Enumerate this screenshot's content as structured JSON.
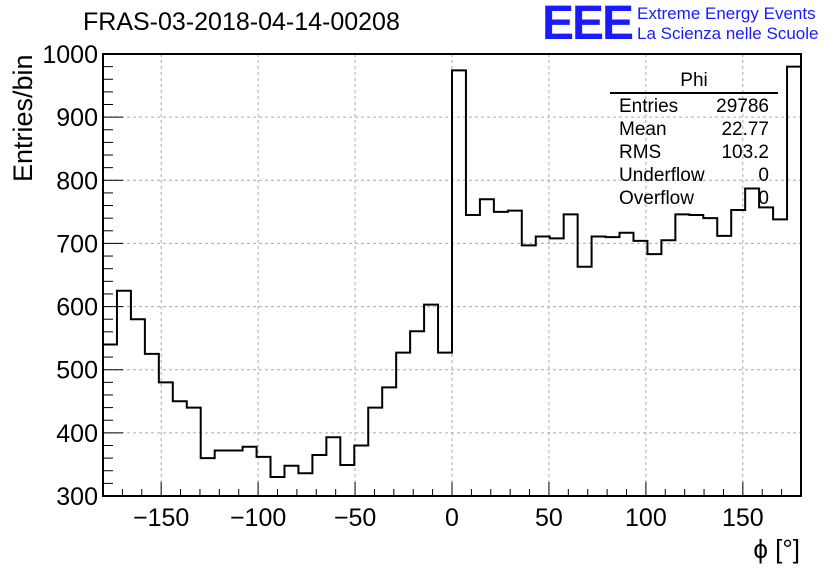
{
  "title": "FRAS-03-2018-04-14-00208",
  "logo": {
    "text": "EEE",
    "line1": "Extreme Energy Events",
    "line2": "La Scienza nelle Scuole",
    "color": "#1a1aff"
  },
  "stats": {
    "name": "Phi",
    "rows": [
      {
        "label": "Entries",
        "value": "29786"
      },
      {
        "label": "Mean",
        "value": "22.77"
      },
      {
        "label": "RMS",
        "value": "103.2"
      },
      {
        "label": "Underflow",
        "value": "0"
      },
      {
        "label": "Overflow",
        "value": "0"
      }
    ]
  },
  "chart_data": {
    "type": "histogram",
    "xlabel": "ϕ [°]",
    "ylabel": "Entries/bin",
    "xlim": [
      -180,
      180
    ],
    "ylim": [
      300,
      1000
    ],
    "grid": true,
    "bin_width": 7.2,
    "bin_edges_start": -180,
    "values": [
      540,
      625,
      580,
      525,
      480,
      450,
      440,
      360,
      372,
      372,
      378,
      362,
      330,
      348,
      336,
      365,
      393,
      349,
      380,
      440,
      472,
      527,
      561,
      603,
      527,
      974,
      745,
      770,
      750,
      752,
      697,
      711,
      708,
      746,
      663,
      711,
      710,
      717,
      704,
      683,
      705,
      746,
      745,
      740,
      712,
      753,
      787,
      757,
      738,
      980
    ],
    "xticks": [
      -150,
      -100,
      -50,
      0,
      50,
      100,
      150
    ],
    "yticks": [
      300,
      400,
      500,
      600,
      700,
      800,
      900,
      1000
    ]
  }
}
